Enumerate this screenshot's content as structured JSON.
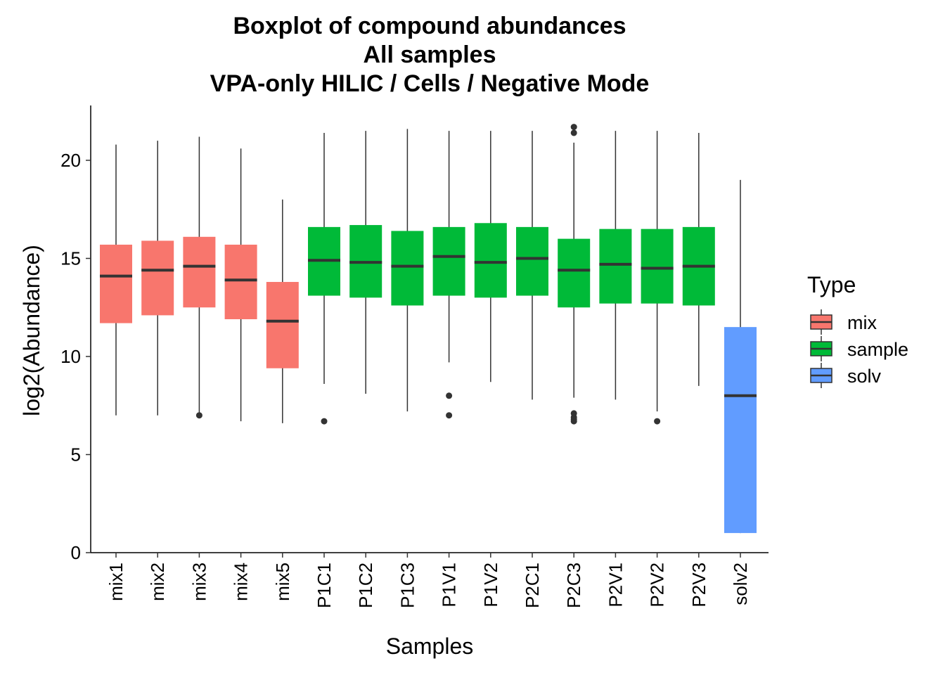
{
  "chart_data": {
    "type": "box",
    "title": [
      "Boxplot of compound abundances",
      "All samples",
      "VPA-only HILIC / Cells / Negative Mode"
    ],
    "xlabel": "Samples",
    "ylabel": "log2(Abundance)",
    "ylim": [
      0,
      22.7
    ],
    "yticks": [
      0,
      5,
      10,
      15,
      20
    ],
    "legend": {
      "title": "Type",
      "position": "right",
      "items": [
        {
          "label": "mix",
          "color": "#F8766D"
        },
        {
          "label": "sample",
          "color": "#00BA38"
        },
        {
          "label": "solv",
          "color": "#619CFF"
        }
      ]
    },
    "categories": [
      "mix1",
      "mix2",
      "mix3",
      "mix4",
      "mix5",
      "P1C1",
      "P1C2",
      "P1C3",
      "P1V1",
      "P1V2",
      "P2C1",
      "P2C3",
      "P2V1",
      "P2V2",
      "P2V3",
      "solv2"
    ],
    "boxes": [
      {
        "name": "mix1",
        "type": "mix",
        "min": 7.0,
        "q1": 11.7,
        "median": 14.1,
        "q3": 15.7,
        "max": 20.8,
        "outliers": []
      },
      {
        "name": "mix2",
        "type": "mix",
        "min": 7.0,
        "q1": 12.1,
        "median": 14.4,
        "q3": 15.9,
        "max": 21.0,
        "outliers": []
      },
      {
        "name": "mix3",
        "type": "mix",
        "min": 7.0,
        "q1": 12.5,
        "median": 14.6,
        "q3": 16.1,
        "max": 21.2,
        "outliers": [
          7.0
        ]
      },
      {
        "name": "mix4",
        "type": "mix",
        "min": 6.7,
        "q1": 11.9,
        "median": 13.9,
        "q3": 15.7,
        "max": 20.6,
        "outliers": []
      },
      {
        "name": "mix5",
        "type": "mix",
        "min": 6.6,
        "q1": 9.4,
        "median": 11.8,
        "q3": 13.8,
        "max": 18.0,
        "outliers": []
      },
      {
        "name": "P1C1",
        "type": "sample",
        "min": 8.6,
        "q1": 13.1,
        "median": 14.9,
        "q3": 16.6,
        "max": 21.4,
        "outliers": [
          6.7
        ]
      },
      {
        "name": "P1C2",
        "type": "sample",
        "min": 8.1,
        "q1": 13.0,
        "median": 14.8,
        "q3": 16.7,
        "max": 21.5,
        "outliers": []
      },
      {
        "name": "P1C3",
        "type": "sample",
        "min": 7.2,
        "q1": 12.6,
        "median": 14.6,
        "q3": 16.4,
        "max": 21.6,
        "outliers": []
      },
      {
        "name": "P1V1",
        "type": "sample",
        "min": 9.7,
        "q1": 13.1,
        "median": 15.1,
        "q3": 16.6,
        "max": 21.5,
        "outliers": [
          7.0,
          8.0
        ]
      },
      {
        "name": "P1V2",
        "type": "sample",
        "min": 8.7,
        "q1": 13.0,
        "median": 14.8,
        "q3": 16.8,
        "max": 21.5,
        "outliers": []
      },
      {
        "name": "P2C1",
        "type": "sample",
        "min": 7.8,
        "q1": 13.1,
        "median": 15.0,
        "q3": 16.6,
        "max": 21.5,
        "outliers": []
      },
      {
        "name": "P2C3",
        "type": "sample",
        "min": 7.9,
        "q1": 12.5,
        "median": 14.4,
        "q3": 16.0,
        "max": 20.9,
        "outliers": [
          6.7,
          6.8,
          6.9,
          7.1,
          21.4,
          21.7
        ]
      },
      {
        "name": "P2V1",
        "type": "sample",
        "min": 7.8,
        "q1": 12.7,
        "median": 14.7,
        "q3": 16.5,
        "max": 21.5,
        "outliers": []
      },
      {
        "name": "P2V2",
        "type": "sample",
        "min": 7.2,
        "q1": 12.7,
        "median": 14.5,
        "q3": 16.5,
        "max": 21.5,
        "outliers": [
          6.7
        ]
      },
      {
        "name": "P2V3",
        "type": "sample",
        "min": 8.5,
        "q1": 12.6,
        "median": 14.6,
        "q3": 16.6,
        "max": 21.4,
        "outliers": []
      },
      {
        "name": "solv2",
        "type": "solv",
        "min": 1.0,
        "q1": 1.0,
        "median": 8.0,
        "q3": 11.5,
        "max": 19.0,
        "outliers": []
      }
    ]
  }
}
